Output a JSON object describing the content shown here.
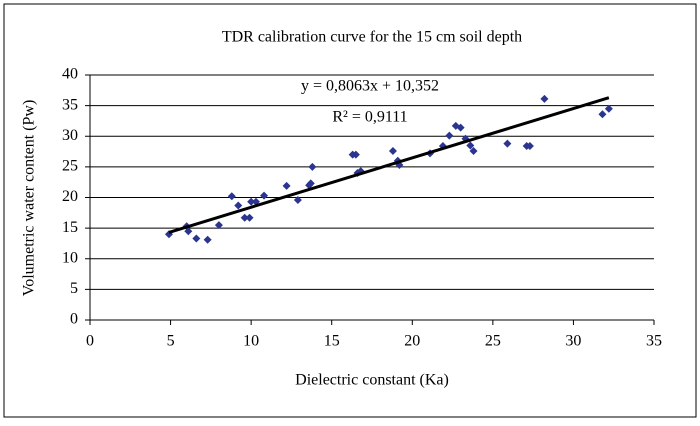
{
  "chart_data": {
    "type": "scatter",
    "title": "TDR calibration curve for the 15 cm soil depth",
    "x_label": "Dielectric constant (Ka)",
    "y_label": "Volumetric water content (Pw)",
    "annotations": [
      "y = 0,8063x + 10,352",
      "R² = 0,9111"
    ],
    "series": [
      {
        "color": "#2b3590",
        "x": [
          4.9,
          6.0,
          6.1,
          6.6,
          7.3,
          8.0,
          8.8,
          9.2,
          9.6,
          9.9,
          10.0,
          10.3,
          10.8,
          12.2,
          12.9,
          13.6,
          13.7,
          13.8,
          16.3,
          16.5,
          16.6,
          16.8,
          18.8,
          19.1,
          19.2,
          21.1,
          21.9,
          22.3,
          22.7,
          23.0,
          23.3,
          23.6,
          23.8,
          25.9,
          27.1,
          27.3,
          28.2,
          31.8,
          32.2
        ],
        "values": [
          14.0,
          15.3,
          14.5,
          13.3,
          13.1,
          15.5,
          20.2,
          18.7,
          16.7,
          16.7,
          19.3,
          19.3,
          20.3,
          21.9,
          19.6,
          22.0,
          22.3,
          25.0,
          27.0,
          27.0,
          24.0,
          24.3,
          27.6,
          26.0,
          25.3,
          27.2,
          28.4,
          30.1,
          31.7,
          31.4,
          29.6,
          28.5,
          27.6,
          28.8,
          28.4,
          28.4,
          36.1,
          33.6,
          34.5
        ]
      }
    ],
    "trendline": {
      "color": "#000000",
      "x": [
        4.9,
        32.2
      ],
      "values": [
        14.3,
        36.3
      ]
    },
    "xlim": [
      0,
      35
    ],
    "xticks": [
      0,
      5,
      10,
      15,
      20,
      25,
      30,
      35
    ],
    "ylim": [
      0,
      40
    ],
    "yticks": [
      0,
      5,
      10,
      15,
      20,
      25,
      30,
      35,
      40
    ],
    "grid": true
  }
}
